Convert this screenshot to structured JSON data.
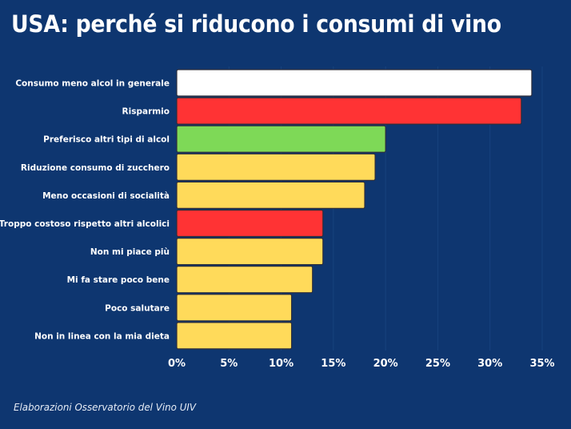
{
  "title": "USA: perché si riducono i consumi di vino",
  "source": "Elaborazioni Osservatorio del Vino UIV",
  "colors": {
    "background": "#0E3670",
    "white": "#FFFFFF",
    "red": "#FF3334",
    "green": "#7ED957",
    "yellow": "#FFDA5A",
    "bar_outline": "#2E2E3A",
    "grid": "#17427E"
  },
  "chart_data": {
    "type": "bar",
    "orientation": "horizontal",
    "title": "USA: perché si riducono i consumi di vino",
    "xlabel": "",
    "ylabel": "",
    "xlim": [
      0,
      35
    ],
    "grid": true,
    "categories": [
      "Consumo meno alcol in generale",
      "Risparmio",
      "Preferisco altri tipi di alcol",
      "Riduzione consumo di zucchero",
      "Meno occasioni di socialità",
      "Troppo costoso rispetto altri alcolici",
      "Non mi piace più",
      "Mi fa stare poco bene",
      "Poco salutare",
      "Non in linea con la mia dieta"
    ],
    "values": [
      34,
      33,
      20,
      19,
      18,
      14,
      14,
      13,
      11,
      11
    ],
    "bar_colors": [
      "white",
      "red",
      "green",
      "yellow",
      "yellow",
      "red",
      "yellow",
      "yellow",
      "yellow",
      "yellow"
    ],
    "x_ticks": [
      0,
      5,
      10,
      15,
      20,
      25,
      30,
      35
    ],
    "x_tick_labels": [
      "0%",
      "5%",
      "10%",
      "15%",
      "20%",
      "25%",
      "30%",
      "35%"
    ]
  }
}
